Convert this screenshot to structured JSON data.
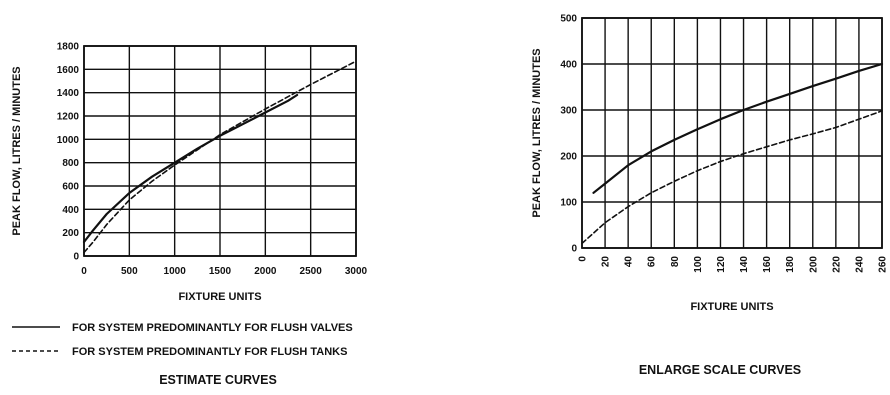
{
  "chart_data": [
    {
      "type": "line",
      "title": "ESTIMATE CURVES",
      "xlabel": "FIXTURE UNITS",
      "ylabel": "PEAK FLOW, LITRES / MINUTES",
      "xlim": [
        0,
        3000
      ],
      "ylim": [
        0,
        1800
      ],
      "xticks": [
        "0",
        "500",
        "1000",
        "1500",
        "2000",
        "2500",
        "3000"
      ],
      "yticks": [
        "0",
        "200",
        "400",
        "600",
        "800",
        "1000",
        "1200",
        "1400",
        "1600",
        "1800"
      ],
      "grid": true,
      "series": [
        {
          "name": "FOR SYSTEM PREDOMINANTLY FOR FLUSH VALVES",
          "style": "solid",
          "x": [
            0,
            100,
            250,
            500,
            750,
            1000,
            1250,
            1500,
            1750,
            2000,
            2250,
            2350
          ],
          "y": [
            120,
            220,
            360,
            540,
            680,
            800,
            920,
            1030,
            1130,
            1230,
            1330,
            1380
          ]
        },
        {
          "name": "FOR SYSTEM PREDOMINANTLY FOR FLUSH TANKS",
          "style": "dashed",
          "x": [
            0,
            100,
            250,
            500,
            750,
            1000,
            1500,
            2000,
            2500,
            3000
          ],
          "y": [
            30,
            120,
            270,
            480,
            640,
            780,
            1040,
            1260,
            1470,
            1670
          ]
        }
      ],
      "legend": [
        {
          "label": "FOR SYSTEM PREDOMINANTLY FOR FLUSH VALVES",
          "style": "solid"
        },
        {
          "label": "FOR SYSTEM PREDOMINANTLY FOR FLUSH TANKS",
          "style": "dashed"
        }
      ]
    },
    {
      "type": "line",
      "title": "ENLARGE SCALE CURVES",
      "xlabel": "FIXTURE UNITS",
      "ylabel": "PEAK FLOW, LITRES / MINUTES",
      "xlim": [
        0,
        260
      ],
      "ylim": [
        0,
        500
      ],
      "xticks": [
        "0",
        "20",
        "40",
        "60",
        "80",
        "100",
        "120",
        "140",
        "160",
        "180",
        "200",
        "220",
        "240",
        "260"
      ],
      "yticks": [
        "0",
        "100",
        "200",
        "300",
        "400",
        "500"
      ],
      "grid": true,
      "series": [
        {
          "name": "FOR SYSTEM PREDOMINANTLY FOR FLUSH VALVES",
          "style": "solid",
          "x": [
            10,
            20,
            40,
            60,
            80,
            100,
            120,
            140,
            160,
            180,
            200,
            220,
            240,
            260
          ],
          "y": [
            120,
            140,
            180,
            210,
            235,
            258,
            280,
            300,
            318,
            335,
            352,
            368,
            385,
            400
          ]
        },
        {
          "name": "FOR SYSTEM PREDOMINANTLY FOR FLUSH TANKS",
          "style": "dashed",
          "x": [
            0,
            20,
            40,
            60,
            80,
            100,
            120,
            140,
            160,
            180,
            200,
            220,
            240,
            260
          ],
          "y": [
            10,
            55,
            90,
            120,
            145,
            168,
            188,
            205,
            220,
            235,
            248,
            262,
            280,
            298
          ]
        }
      ]
    }
  ]
}
